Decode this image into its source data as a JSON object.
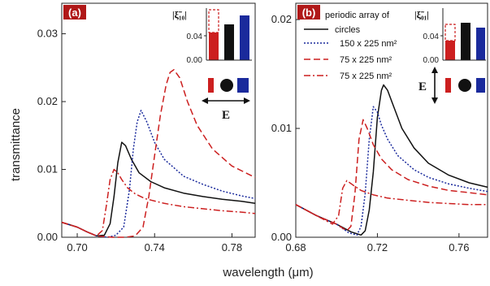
{
  "figure": {
    "ylabel": "transmittance",
    "xlabel": "wavelength (μm)"
  },
  "panels": {
    "a": {
      "badge": "(a)",
      "inset_label": "|ξ̃₁₀|",
      "inset_ticks": [
        "0.00",
        "0.04"
      ],
      "e_label": "E",
      "e_direction": "horizontal",
      "xticks": [
        "0.70",
        "0.74",
        "0.78"
      ],
      "yticks": [
        "0.00",
        "0.01",
        "0.02",
        "0.03"
      ]
    },
    "b": {
      "badge": "(b)",
      "inset_label": "|ξ̃₀₁|",
      "inset_ticks": [
        "0.00",
        "0.04"
      ],
      "e_label": "E",
      "e_direction": "vertical",
      "xticks": [
        "0.68",
        "0.72",
        "0.76"
      ],
      "yticks": [
        "0.00",
        "0.01",
        "0.02"
      ],
      "legend": [
        "periodic array of",
        "circles",
        "150 x 225 nm²",
        "75 x 225 nm²",
        "75 x 225 nm²"
      ]
    }
  },
  "colors": {
    "red": "#cc1f1f",
    "black": "#111111",
    "blue": "#1a2a9c",
    "badge": "#b01818"
  },
  "chart_data": [
    {
      "type": "line",
      "panel": "a",
      "xlabel": "wavelength (μm)",
      "ylabel": "transmittance",
      "xlim": [
        0.692,
        0.792
      ],
      "ylim": [
        0,
        0.0345
      ],
      "series": [
        {
          "style": "solid",
          "color": "black",
          "x": [
            0.692,
            0.7,
            0.705,
            0.71,
            0.714,
            0.717,
            0.719,
            0.721,
            0.723,
            0.725,
            0.728,
            0.732,
            0.738,
            0.745,
            0.755,
            0.765,
            0.775,
            0.785,
            0.792
          ],
          "y": [
            0.0022,
            0.0015,
            0.0008,
            0.0002,
            0.0003,
            0.002,
            0.006,
            0.011,
            0.014,
            0.0135,
            0.0115,
            0.0095,
            0.0082,
            0.0073,
            0.0065,
            0.006,
            0.0056,
            0.0053,
            0.005
          ]
        },
        {
          "style": "dotted",
          "color": "blue",
          "x": [
            0.692,
            0.7,
            0.705,
            0.71,
            0.716,
            0.72,
            0.724,
            0.727,
            0.729,
            0.731,
            0.733,
            0.736,
            0.74,
            0.745,
            0.755,
            0.765,
            0.775,
            0.785,
            0.792
          ],
          "y": [
            0.0022,
            0.0015,
            0.0008,
            0.0002,
            0.0,
            0.0003,
            0.0015,
            0.007,
            0.013,
            0.017,
            0.0187,
            0.017,
            0.014,
            0.0115,
            0.009,
            0.0078,
            0.0068,
            0.0061,
            0.0057
          ]
        },
        {
          "style": "dashed",
          "color": "red",
          "x": [
            0.692,
            0.7,
            0.705,
            0.71,
            0.718,
            0.725,
            0.73,
            0.734,
            0.737,
            0.74,
            0.743,
            0.746,
            0.748,
            0.75,
            0.753,
            0.757,
            0.762,
            0.77,
            0.78,
            0.792
          ],
          "y": [
            0.0022,
            0.0015,
            0.0008,
            0.0002,
            0.0,
            0.0,
            0.0002,
            0.0015,
            0.006,
            0.012,
            0.018,
            0.0225,
            0.0243,
            0.0247,
            0.0235,
            0.02,
            0.0165,
            0.013,
            0.0105,
            0.0088
          ]
        },
        {
          "style": "dashdot",
          "color": "red",
          "x": [
            0.692,
            0.7,
            0.705,
            0.71,
            0.713,
            0.715,
            0.717,
            0.719,
            0.721,
            0.723,
            0.726,
            0.73,
            0.735,
            0.745,
            0.755,
            0.765,
            0.775,
            0.785,
            0.792
          ],
          "y": [
            0.0022,
            0.0015,
            0.0008,
            0.0002,
            0.001,
            0.0045,
            0.0085,
            0.01,
            0.0095,
            0.0085,
            0.0073,
            0.0064,
            0.0057,
            0.005,
            0.0045,
            0.0042,
            0.0039,
            0.0037,
            0.0035
          ]
        }
      ]
    },
    {
      "type": "line",
      "panel": "b",
      "xlabel": "wavelength (μm)",
      "ylabel": "transmittance",
      "xlim": [
        0.68,
        0.774
      ],
      "ylim": [
        0,
        0.0215
      ],
      "series": [
        {
          "name": "periodic array of circles",
          "style": "solid",
          "color": "black",
          "x": [
            0.68,
            0.69,
            0.7,
            0.707,
            0.712,
            0.714,
            0.716,
            0.718,
            0.72,
            0.722,
            0.723,
            0.725,
            0.728,
            0.732,
            0.738,
            0.745,
            0.755,
            0.765,
            0.774
          ],
          "y": [
            0.003,
            0.002,
            0.0012,
            0.0005,
            0.0002,
            0.0006,
            0.0025,
            0.006,
            0.011,
            0.0135,
            0.014,
            0.0135,
            0.012,
            0.01,
            0.0082,
            0.0068,
            0.0057,
            0.005,
            0.0046
          ]
        },
        {
          "name": "150 x 225 nm²",
          "style": "dotted",
          "color": "blue",
          "x": [
            0.68,
            0.69,
            0.7,
            0.706,
            0.71,
            0.712,
            0.714,
            0.716,
            0.718,
            0.72,
            0.722,
            0.725,
            0.73,
            0.738,
            0.745,
            0.755,
            0.765,
            0.774
          ],
          "y": [
            0.003,
            0.002,
            0.0012,
            0.0004,
            0.0002,
            0.001,
            0.004,
            0.009,
            0.012,
            0.0115,
            0.0103,
            0.009,
            0.0075,
            0.0062,
            0.0055,
            0.0049,
            0.0045,
            0.0042
          ]
        },
        {
          "name": "75 x 225 nm²",
          "style": "dashed",
          "color": "red",
          "x": [
            0.68,
            0.69,
            0.7,
            0.705,
            0.707,
            0.709,
            0.711,
            0.713,
            0.715,
            0.718,
            0.722,
            0.727,
            0.735,
            0.745,
            0.755,
            0.765,
            0.774
          ],
          "y": [
            0.003,
            0.002,
            0.0012,
            0.0006,
            0.001,
            0.004,
            0.009,
            0.0108,
            0.01,
            0.0085,
            0.0072,
            0.0062,
            0.0053,
            0.0047,
            0.0043,
            0.0041,
            0.0039
          ]
        },
        {
          "name": "75 x 225 nm²",
          "style": "dashdot",
          "color": "red",
          "x": [
            0.68,
            0.69,
            0.698,
            0.701,
            0.703,
            0.705,
            0.708,
            0.712,
            0.718,
            0.725,
            0.735,
            0.745,
            0.755,
            0.765,
            0.774
          ],
          "y": [
            0.003,
            0.002,
            0.0012,
            0.002,
            0.0045,
            0.0052,
            0.0048,
            0.0043,
            0.0039,
            0.0036,
            0.0034,
            0.0032,
            0.0031,
            0.003,
            0.003
          ]
        }
      ]
    }
  ]
}
